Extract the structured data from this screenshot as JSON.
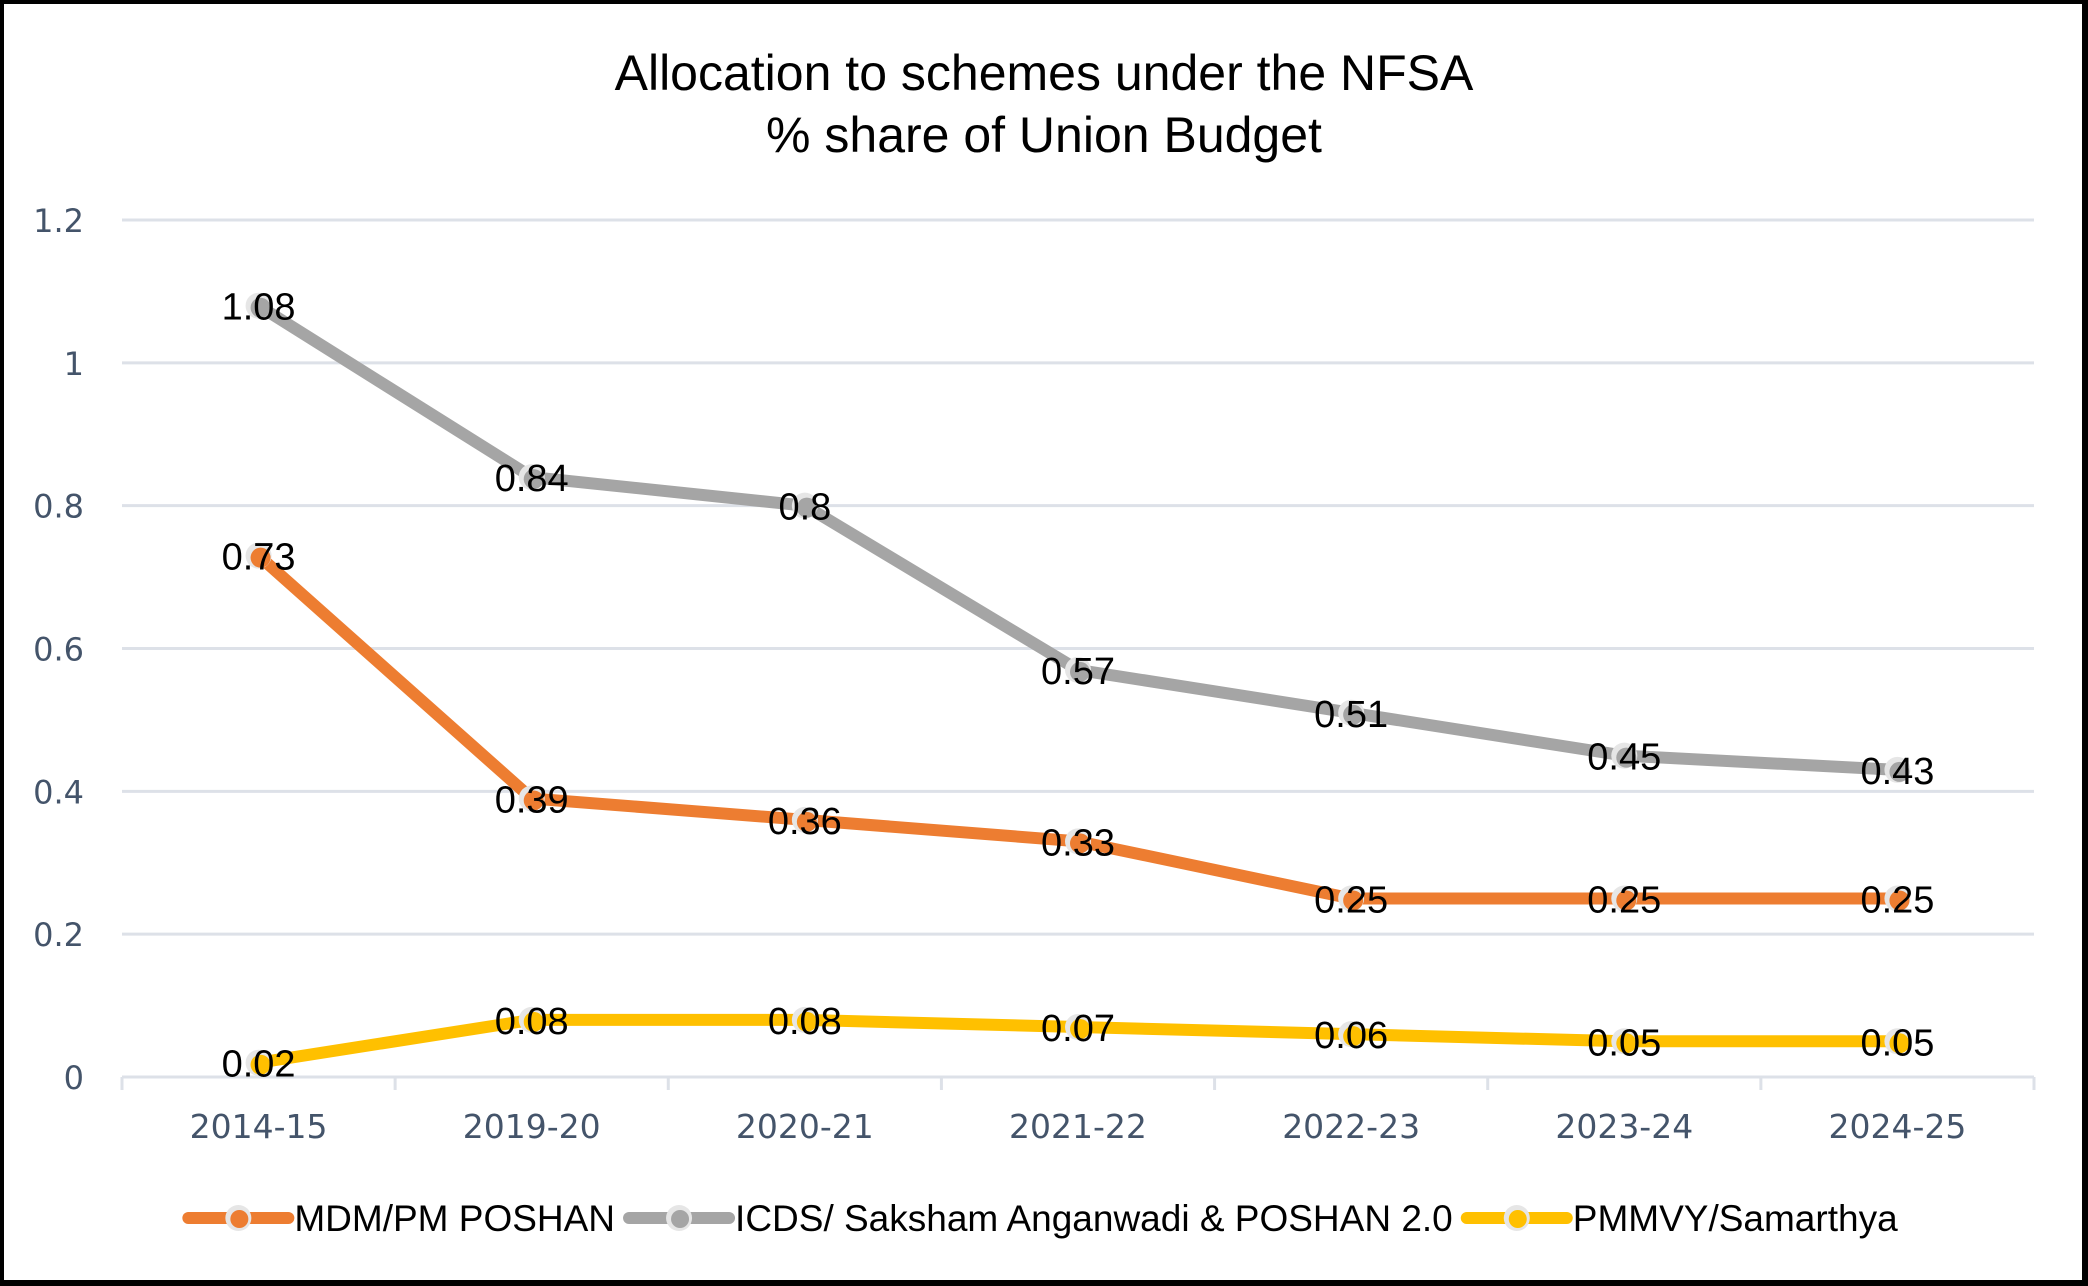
{
  "chart_data": {
    "type": "line",
    "title": "Allocation to schemes under the NFSA",
    "subtitle": "% share of Union Budget",
    "xlabel": "",
    "ylabel": "",
    "categories": [
      "2014-15",
      "2019-20",
      "2020-21",
      "2021-22",
      "2022-23",
      "2023-24",
      "2024-25"
    ],
    "ylim": [
      0,
      1.2
    ],
    "yticks": [
      0,
      0.2,
      0.4,
      0.6,
      0.8,
      1,
      1.2
    ],
    "ytick_labels": [
      "0",
      "0.2",
      "0.4",
      "0.6",
      "0.8",
      "1",
      "1.2"
    ],
    "grid": true,
    "legend_position": "bottom",
    "data_labels": true,
    "series": [
      {
        "name": "MDM/PM POSHAN",
        "color": "#ED7D31",
        "values": [
          0.73,
          0.39,
          0.36,
          0.33,
          0.25,
          0.25,
          0.25
        ],
        "labels": [
          "0.73",
          "0.39",
          "0.36",
          "0.33",
          "0.25",
          "0.25",
          "0.25"
        ]
      },
      {
        "name": "ICDS/ Saksham Anganwadi & POSHAN 2.0",
        "color": "#A5A5A5",
        "values": [
          1.08,
          0.84,
          0.8,
          0.57,
          0.51,
          0.45,
          0.43
        ],
        "labels": [
          "1.08",
          "0.84",
          "0.8",
          "0.57",
          "0.51",
          "0.45",
          "0.43"
        ]
      },
      {
        "name": "PMMVY/Samarthya",
        "color": "#FFC000",
        "values": [
          0.02,
          0.08,
          0.08,
          0.07,
          0.06,
          0.05,
          0.05
        ],
        "labels": [
          "0.02",
          "0.08",
          "0.08",
          "0.07",
          "0.06",
          "0.05",
          "0.05"
        ]
      }
    ]
  },
  "style": {
    "grid_color": "#DDE1E8",
    "axis_text_color": "#44546A",
    "marker_halo_color": "#E6E6E6"
  }
}
